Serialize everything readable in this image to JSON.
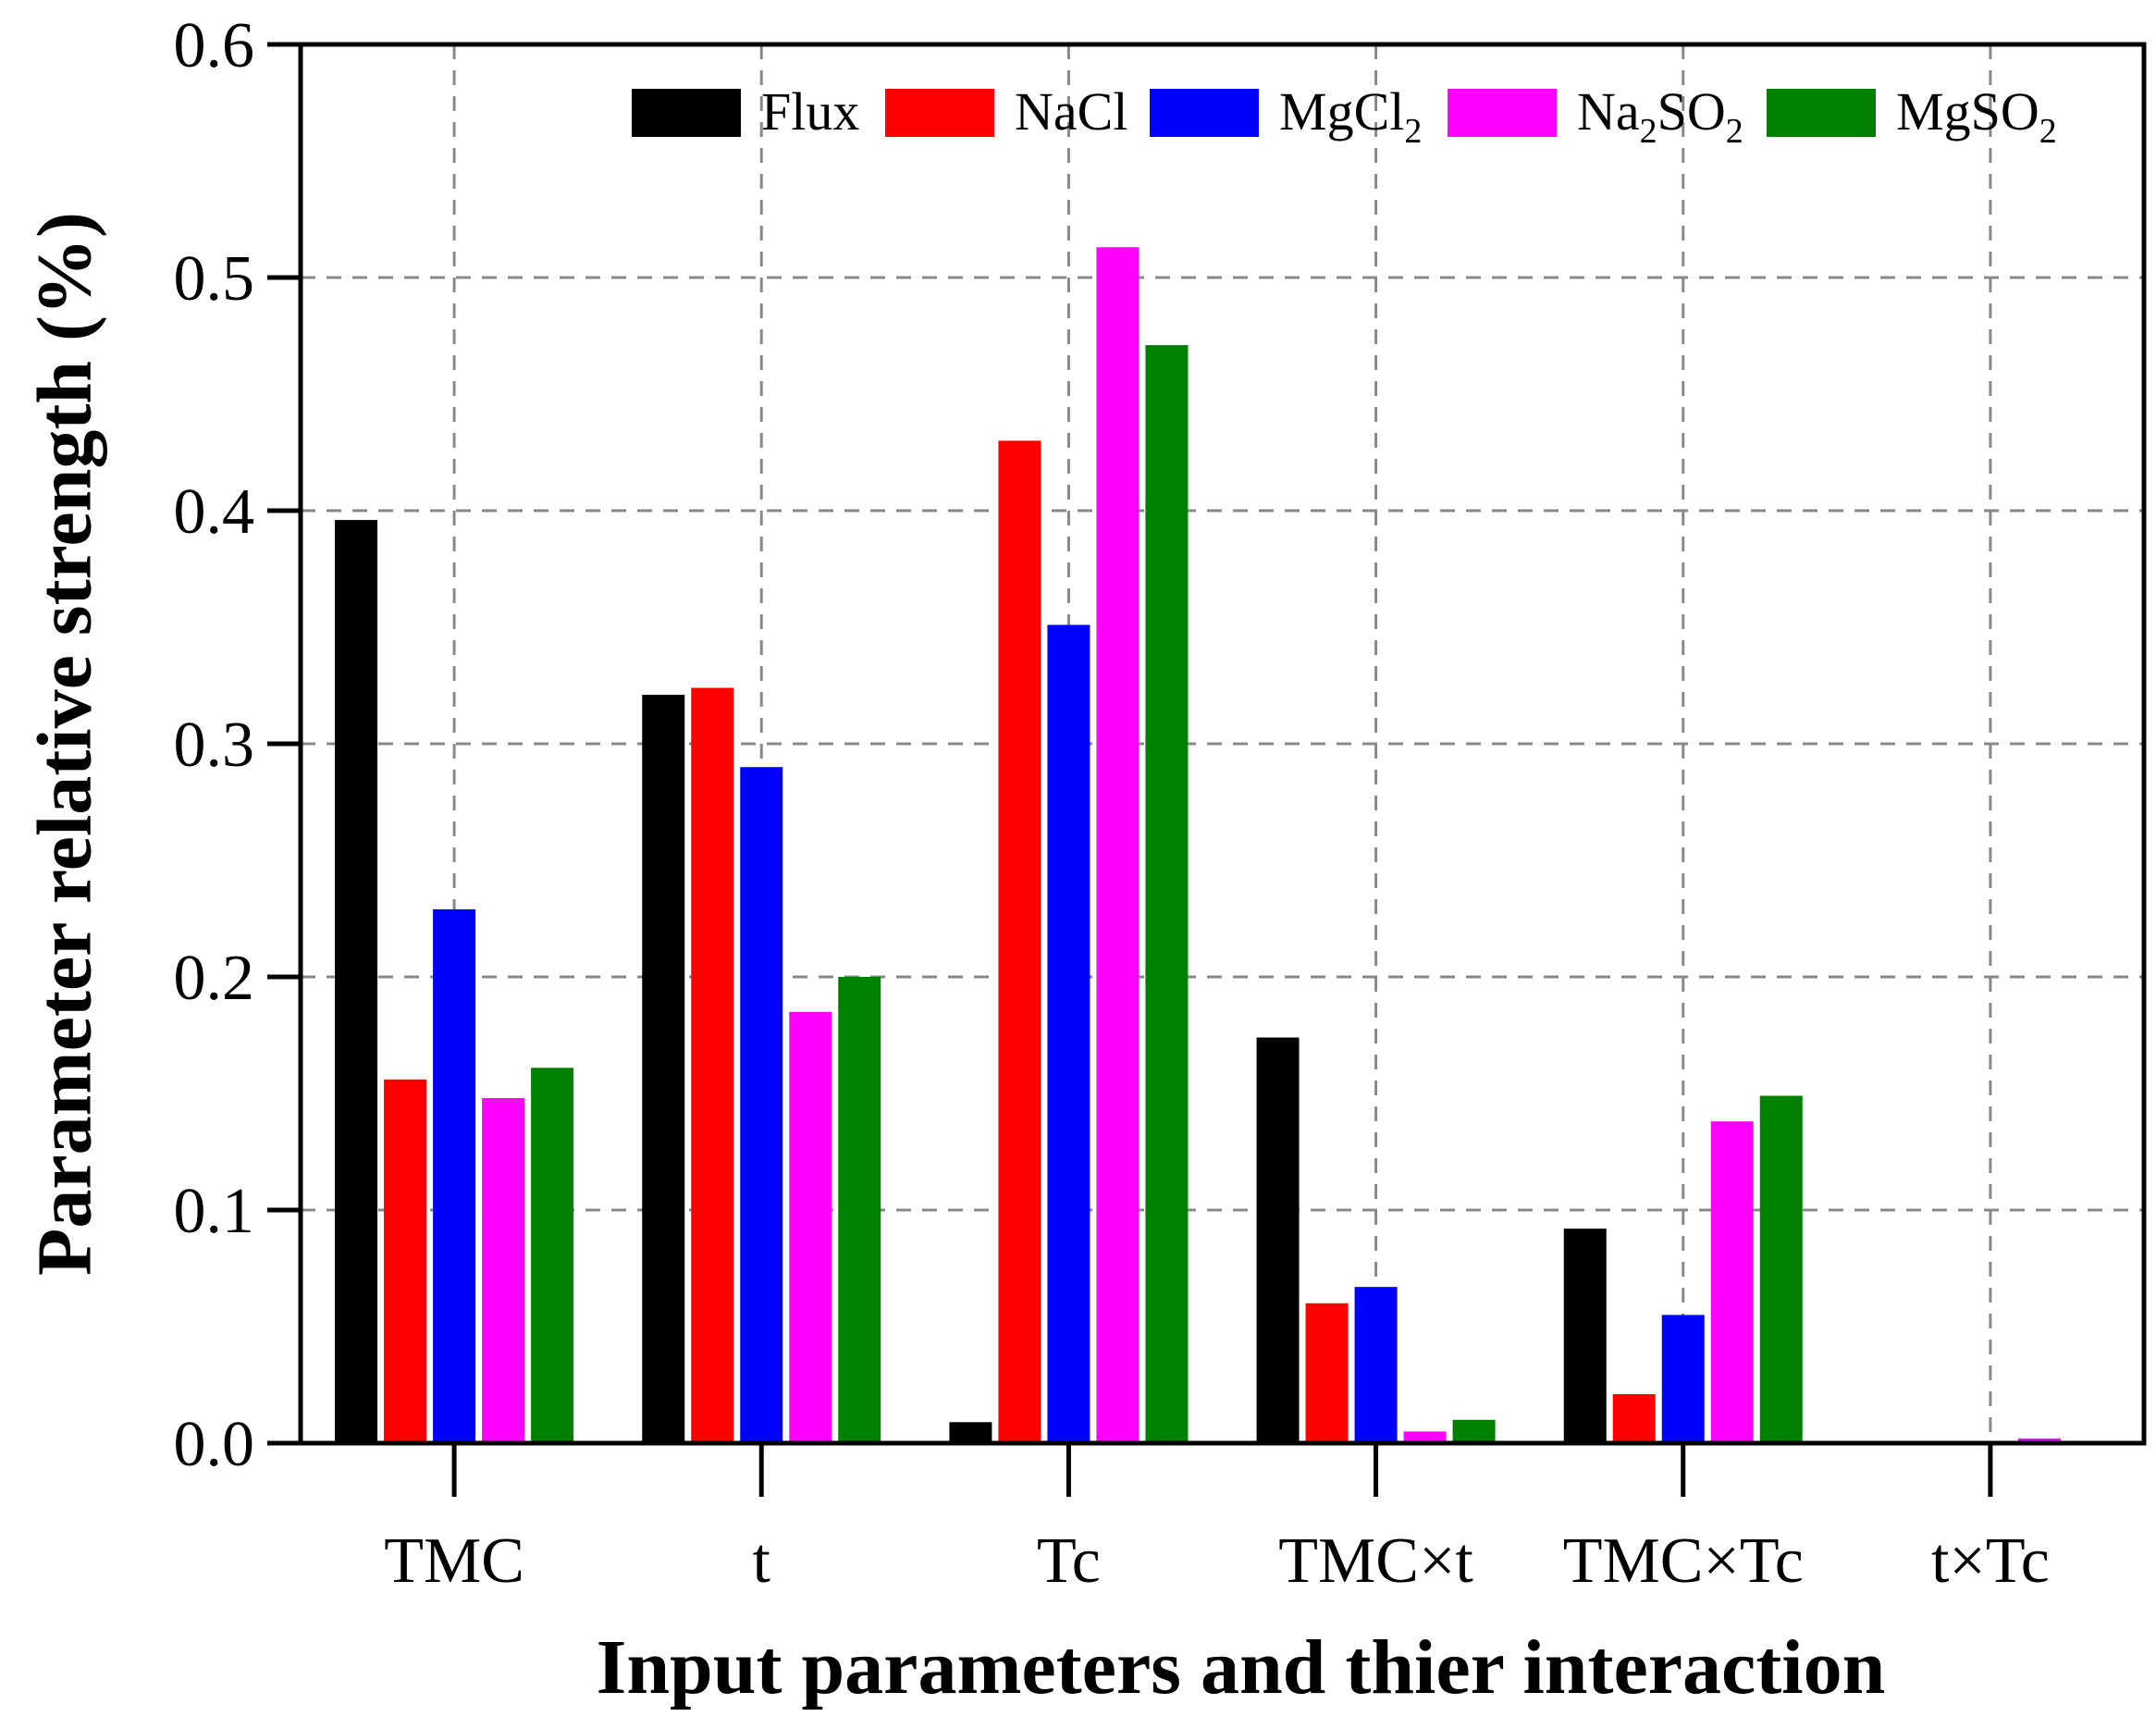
{
  "chart_data": {
    "type": "bar",
    "title": "",
    "xlabel": "Input parameters and thier interaction",
    "ylabel": "Parameter relative strength (%)",
    "ylim": [
      0,
      0.6
    ],
    "yticks": [
      "0.0",
      "0.1",
      "0.2",
      "0.3",
      "0.4",
      "0.5",
      "0.6"
    ],
    "grid": true,
    "legend_position": "top-right",
    "categories": [
      "TMC",
      "t",
      "Tc",
      "TMC×t",
      "TMC×Tc",
      "t×Tc"
    ],
    "series": [
      {
        "name": "Flux",
        "label_main": "Flux",
        "label_sub": "",
        "label_tail": "",
        "color": "#000000",
        "values": [
          0.396,
          0.321,
          0.009,
          0.174,
          0.092,
          0.0
        ]
      },
      {
        "name": "NaCl",
        "label_main": "NaCl",
        "label_sub": "",
        "label_tail": "",
        "color": "#ff0000",
        "values": [
          0.156,
          0.324,
          0.43,
          0.06,
          0.021,
          0.0
        ]
      },
      {
        "name": "MgCl2",
        "label_main": "MgCl",
        "label_sub": "2",
        "label_tail": "",
        "color": "#0000ff",
        "values": [
          0.229,
          0.29,
          0.351,
          0.067,
          0.055,
          0.0
        ]
      },
      {
        "name": "Na2SO2",
        "label_main": "Na",
        "label_sub": "2",
        "label_tail": "SO",
        "label_sub2": "2",
        "color": "#ff00ff",
        "values": [
          0.148,
          0.185,
          0.513,
          0.005,
          0.138,
          0.002
        ]
      },
      {
        "name": "MgSO2",
        "label_main": "MgSO",
        "label_sub": "2",
        "label_tail": "",
        "color": "#008000",
        "values": [
          0.161,
          0.2,
          0.471,
          0.01,
          0.149,
          0.0
        ]
      }
    ]
  }
}
